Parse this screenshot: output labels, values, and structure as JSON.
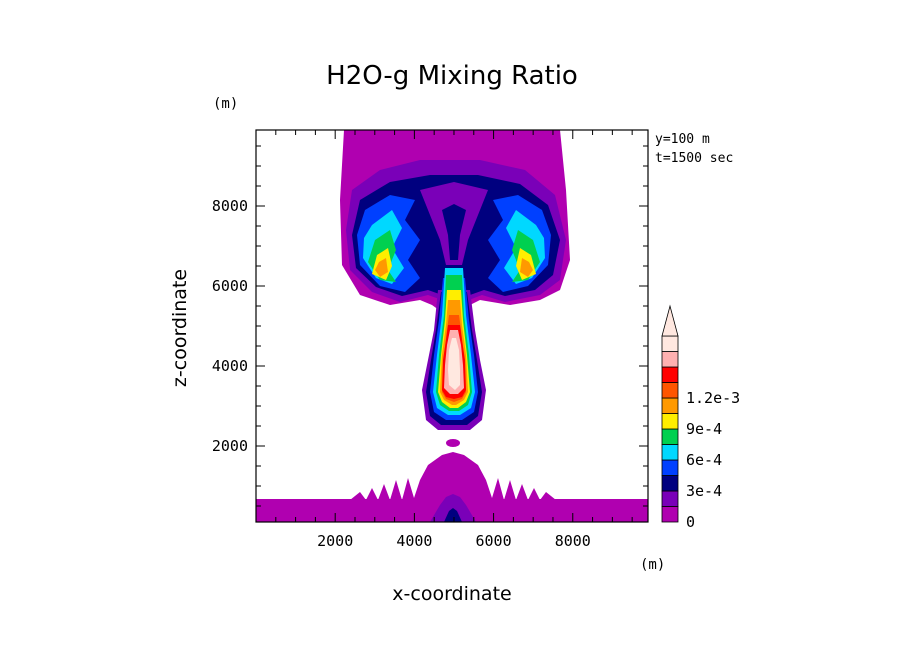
{
  "chart_data": {
    "type": "heatmap",
    "title": "H2O-g Mixing Ratio",
    "xlabel": "x-coordinate",
    "ylabel": "z-coordinate",
    "x_unit": "(m)",
    "y_unit": "(m)",
    "annotations": [
      "y=100 m",
      "t=1500 sec"
    ],
    "xlim": [
      0,
      9900
    ],
    "ylim": [
      100,
      9900
    ],
    "x_ticks": [
      2000,
      4000,
      6000,
      8000
    ],
    "y_ticks": [
      2000,
      4000,
      6000,
      8000
    ],
    "x_tick_labels": [
      "2000",
      "4000",
      "6000",
      "8000"
    ],
    "y_tick_labels": [
      "2000",
      "4000",
      "6000",
      "8000"
    ],
    "colorbar": {
      "levels": [
        0,
        0.00015,
        0.0003,
        0.00045,
        0.0006,
        0.00075,
        0.0009,
        0.00105,
        0.0012,
        0.00135
      ],
      "tick_labels": [
        "0",
        "3e-4",
        "6e-4",
        "9e-4",
        "1.2e-3"
      ],
      "tick_values": [
        0,
        0.0003,
        0.0006,
        0.0009,
        0.0012
      ],
      "colors": [
        "#b000b0",
        "#7a00b8",
        "#00007f",
        "#0040ff",
        "#00d8ff",
        "#00d050",
        "#ffee00",
        "#ff9900",
        "#ff5500",
        "#ff0000",
        "#ffb0b0",
        "#ffe8e0"
      ],
      "extend": "max"
    },
    "features": [
      {
        "name": "surface-layer",
        "level": 0.00015
      },
      {
        "name": "cloud-cap",
        "level": 0.00075
      },
      {
        "name": "plume-column",
        "level": 0.00135
      },
      {
        "name": "base-dome",
        "level": 0.00015
      }
    ]
  }
}
